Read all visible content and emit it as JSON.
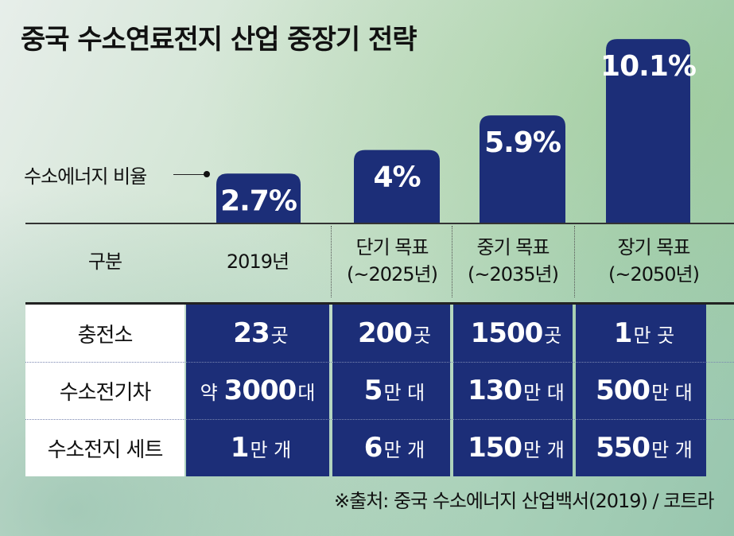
{
  "title": "중국 수소연료전지 산업 중장기 전략",
  "chart_data": {
    "type": "bar",
    "categories": [
      "2019년",
      "단기 목표 (~2025년)",
      "중기 목표 (~2035년)",
      "장기 목표 (~2050년)"
    ],
    "series": [
      {
        "name": "수소에너지 비율",
        "values": [
          2.7,
          4,
          5.9,
          10.1
        ],
        "labels": [
          "2.7%",
          "4%",
          "5.9%",
          "10.1%"
        ]
      }
    ],
    "ylim": [
      0,
      10.5
    ],
    "bar_color": "#1c2e78"
  },
  "ratio_label": "수소에너지 비율",
  "header": {
    "label": "구분",
    "cols": [
      {
        "line1": "2019년",
        "line2": ""
      },
      {
        "line1": "단기 목표",
        "line2": "(~2025년)"
      },
      {
        "line1": "중기 목표",
        "line2": "(~2035년)"
      },
      {
        "line1": "장기 목표",
        "line2": "(~2050년)"
      }
    ]
  },
  "table": {
    "rows": [
      {
        "label": "충전소",
        "cells": [
          {
            "pre": "",
            "num": "23",
            "unit": "곳"
          },
          {
            "pre": "",
            "num": "200",
            "unit": "곳"
          },
          {
            "pre": "",
            "num": "1500",
            "unit": "곳"
          },
          {
            "pre": "",
            "num": "1",
            "unit": "만 곳"
          }
        ]
      },
      {
        "label": "수소전기차",
        "cells": [
          {
            "pre": "약",
            "num": "3000",
            "unit": "대"
          },
          {
            "pre": "",
            "num": "5",
            "unit": "만 대"
          },
          {
            "pre": "",
            "num": "130",
            "unit": "만 대"
          },
          {
            "pre": "",
            "num": "500",
            "unit": "만 대"
          }
        ]
      },
      {
        "label": "수소전지 세트",
        "cells": [
          {
            "pre": "",
            "num": "1",
            "unit": "만 개"
          },
          {
            "pre": "",
            "num": "6",
            "unit": "만 개"
          },
          {
            "pre": "",
            "num": "150",
            "unit": "만 개"
          },
          {
            "pre": "",
            "num": "550",
            "unit": "만 개"
          }
        ]
      }
    ]
  },
  "source": "※출처: 중국 수소에너지 산업백서(2019) / 코트라"
}
